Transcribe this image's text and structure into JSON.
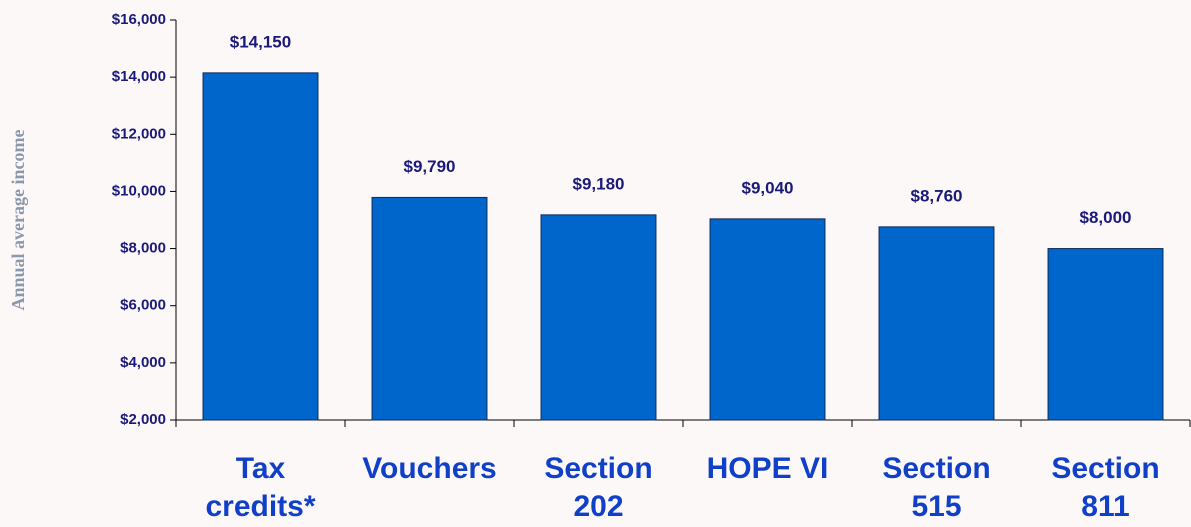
{
  "chart_data": {
    "type": "bar",
    "y_axis_label": "Annual  average income",
    "categories": [
      "Tax credits*",
      "Vouchers",
      "Section 202",
      "HOPE VI",
      "Section 515",
      "Section 811"
    ],
    "values": [
      14150,
      9790,
      9180,
      9040,
      8760,
      8000
    ],
    "value_labels": [
      "$14,150",
      "$9,790",
      "$9,180",
      "$9,040",
      "$8,760",
      "$8,000"
    ],
    "color": "#0066cc",
    "ylim": [
      2000,
      16000
    ],
    "yticks": [
      {
        "value": 2000,
        "label": "$2,000"
      },
      {
        "value": 4000,
        "label": "$4,000"
      },
      {
        "value": 6000,
        "label": "$6,000"
      },
      {
        "value": 8000,
        "label": "$8,000"
      },
      {
        "value": 10000,
        "label": "$10,000"
      },
      {
        "value": 12000,
        "label": "$12,000"
      },
      {
        "value": 14000,
        "label": "$14,000"
      },
      {
        "value": 16000,
        "label": "$16,000"
      }
    ],
    "grid": false
  }
}
